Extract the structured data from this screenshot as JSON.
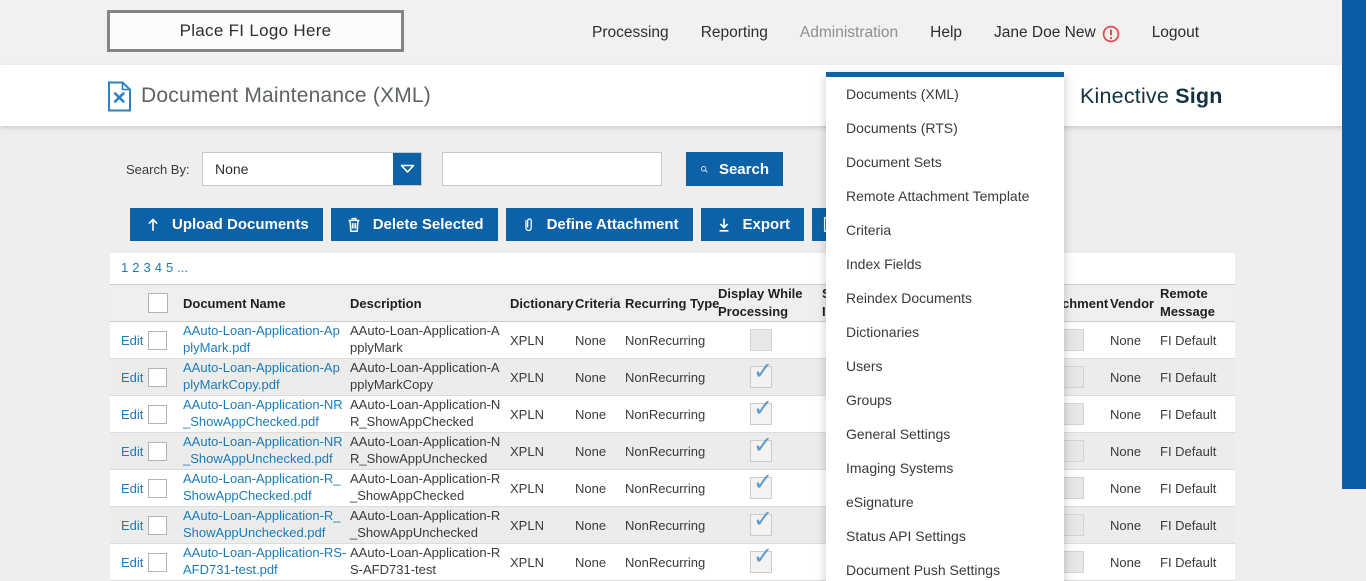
{
  "colors": {
    "primary_blue": "#0d62a7",
    "link_blue": "#1b7bb9",
    "warning_red": "#e04f4f",
    "brand_dark": "#14323e"
  },
  "header": {
    "logo_text": "Place FI Logo Here",
    "nav_items": [
      {
        "label": "Processing"
      },
      {
        "label": "Reporting"
      },
      {
        "label": "Administration",
        "muted": true,
        "active": true
      },
      {
        "label": "Help"
      },
      {
        "label": "Jane Doe New",
        "warning": true
      },
      {
        "label": "Logout"
      }
    ]
  },
  "title_bar": {
    "title": "Document Maintenance (XML)",
    "brand_name": "Kinective ",
    "brand_suffix": "Sign"
  },
  "search": {
    "label": "Search By:",
    "selected_option": "None",
    "input_value": "",
    "button_label": "Search"
  },
  "toolbar": {
    "buttons": [
      {
        "label": "Upload Documents",
        "icon": "upload-icon"
      },
      {
        "label": "Delete Selected",
        "icon": "trash-icon"
      },
      {
        "label": "Define Attachment",
        "icon": "paperclip-icon"
      },
      {
        "label": "Export",
        "icon": "export-icon"
      },
      {
        "label": "",
        "icon": "download-document-icon",
        "partial": true
      }
    ]
  },
  "pagination": {
    "pages": [
      "1",
      "2",
      "3",
      "4",
      "5",
      "..."
    ]
  },
  "table": {
    "edit_label": "Edit",
    "columns": {
      "name": "Document Name",
      "desc": "Description",
      "dict": "Dictionary",
      "crit": "Criteria",
      "rec": "Recurring Type",
      "dwp": "Display While Processing",
      "frag_line1": "S",
      "frag_line2": "I",
      "attachment_partial": "chment",
      "vendor": "Vendor",
      "remote": "Remote Message"
    },
    "rows": [
      {
        "name": "AAuto-Loan-Application-ApplyMark.pdf",
        "desc": "AAuto-Loan-Application-ApplyMark",
        "dict": "XPLN",
        "crit": "None",
        "rec": "NonRecurring",
        "dwp": false,
        "vendor": "None",
        "remote": "FI Default"
      },
      {
        "name": "AAuto-Loan-Application-ApplyMarkCopy.pdf",
        "desc": "AAuto-Loan-Application-ApplyMarkCopy",
        "dict": "XPLN",
        "crit": "None",
        "rec": "NonRecurring",
        "dwp": true,
        "vendor": "None",
        "remote": "FI Default"
      },
      {
        "name": "AAuto-Loan-Application-NR_ShowAppChecked.pdf",
        "desc": "AAuto-Loan-Application-NR_ShowAppChecked",
        "dict": "XPLN",
        "crit": "None",
        "rec": "NonRecurring",
        "dwp": true,
        "vendor": "None",
        "remote": "FI Default"
      },
      {
        "name": "AAuto-Loan-Application-NR_ShowAppUnchecked.pdf",
        "desc": "AAuto-Loan-Application-NR_ShowAppUnchecked",
        "dict": "XPLN",
        "crit": "None",
        "rec": "NonRecurring",
        "dwp": true,
        "vendor": "None",
        "remote": "FI Default"
      },
      {
        "name": "AAuto-Loan-Application-R_ShowAppChecked.pdf",
        "desc": "AAuto-Loan-Application-R_ShowAppChecked",
        "dict": "XPLN",
        "crit": "None",
        "rec": "NonRecurring",
        "dwp": true,
        "vendor": "None",
        "remote": "FI Default"
      },
      {
        "name": "AAuto-Loan-Application-R_ShowAppUnchecked.pdf",
        "desc": "AAuto-Loan-Application-R_ShowAppUnchecked",
        "dict": "XPLN",
        "crit": "None",
        "rec": "NonRecurring",
        "dwp": true,
        "vendor": "None",
        "remote": "FI Default"
      },
      {
        "name": "AAuto-Loan-Application-RS-AFD731-test.pdf",
        "desc": "AAuto-Loan-Application-RS-AFD731-test",
        "dict": "XPLN",
        "crit": "None",
        "rec": "NonRecurring",
        "dwp": true,
        "vendor": "None",
        "remote": "FI Default"
      }
    ]
  },
  "admin_menu": {
    "items": [
      "Documents (XML)",
      "Documents (RTS)",
      "Document Sets",
      "Remote Attachment Template",
      "Criteria",
      "Index Fields",
      "Reindex Documents",
      "Dictionaries",
      "Users",
      "Groups",
      "General Settings",
      "Imaging Systems",
      "eSignature",
      "Status API Settings",
      "Document Push Settings"
    ]
  }
}
